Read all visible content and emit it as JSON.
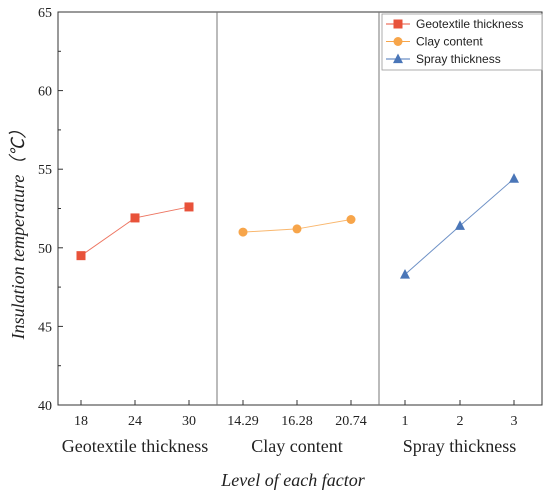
{
  "chart_data": {
    "type": "line",
    "ylabel": "Insulation temperature（℃）",
    "xlabel": "Level of each factor",
    "ylim": [
      40,
      65
    ],
    "yticks": [
      40,
      45,
      50,
      55,
      60,
      65
    ],
    "grid": false,
    "legend_placement": "top-right",
    "groups": [
      {
        "name": "Geotextile thickness",
        "levels": [
          "18",
          "24",
          "30"
        ],
        "values": [
          49.5,
          51.9,
          52.6
        ],
        "marker": "square",
        "color": "#e8523a"
      },
      {
        "name": "Clay content",
        "levels": [
          "14.29",
          "16.28",
          "20.74"
        ],
        "values": [
          51.0,
          51.2,
          51.8
        ],
        "marker": "circle",
        "color": "#f7a54a"
      },
      {
        "name": "Spray thickness",
        "levels": [
          "1",
          "2",
          "3"
        ],
        "values": [
          48.3,
          51.4,
          54.4
        ],
        "marker": "triangle",
        "color": "#4a76b8"
      }
    ]
  }
}
